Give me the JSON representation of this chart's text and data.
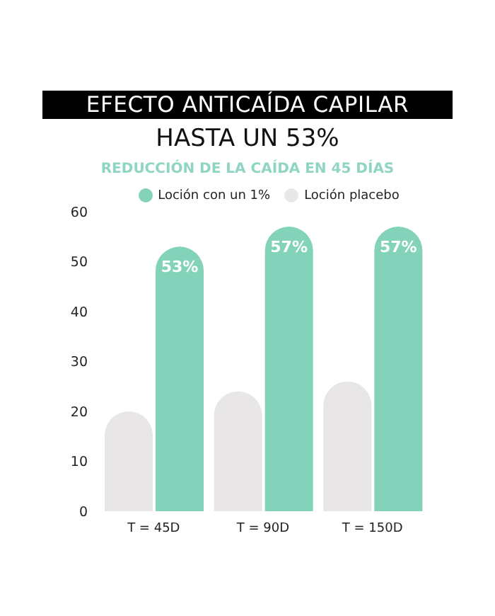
{
  "chart_data": {
    "type": "bar",
    "title": "EFECTO ANTICAÍDA CAPILAR",
    "subtitle": "HASTA UN 53%",
    "annotations": [
      "REDUCCIÓN DE LA CAÍDA EN 45 DÍAS"
    ],
    "categories": [
      "T = 45D",
      "T = 90D",
      "T = 150D"
    ],
    "series": [
      {
        "name": "Loción placebo",
        "color": "#e8e6e6",
        "values": [
          20,
          24,
          26
        ]
      },
      {
        "name": "Loción con un 1%",
        "color": "#82d3b9",
        "values": [
          53,
          57,
          57
        ],
        "value_labels": [
          "53%",
          "57%",
          "57%"
        ]
      }
    ],
    "ylim": [
      0,
      60
    ],
    "yticks": [
      0,
      10,
      20,
      30,
      40,
      50,
      60
    ],
    "grid": false,
    "legend": "top"
  }
}
